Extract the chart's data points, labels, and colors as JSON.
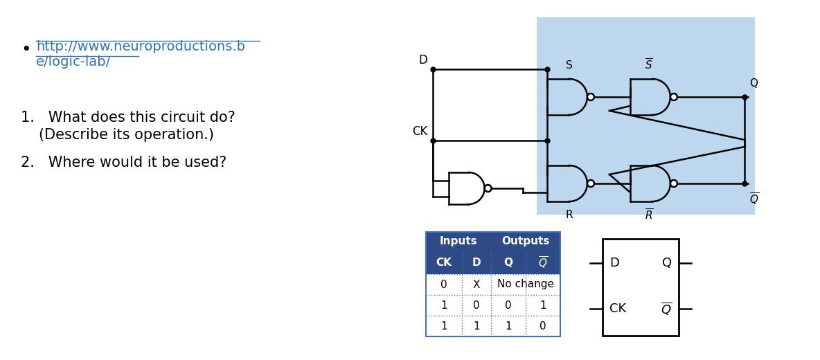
{
  "bg_color": "#ffffff",
  "link_color": "#2E74B5",
  "link_text1": "http://www.neuroproductions.b",
  "link_text2": "e/logic-lab/",
  "q1_line1": "What does this circuit do?",
  "q1_line2": "(Describe its operation.)",
  "q2_line1": "Where would it be used?",
  "circuit_bg": "#BDD7EE",
  "table_header_bg": "#2E4A87",
  "table_header_color": "#ffffff",
  "table_row_bg": "#ffffff",
  "table_border_color": "#4472C4",
  "table_rows": [
    [
      "0",
      "X",
      "No change",
      ""
    ],
    [
      "1",
      "0",
      "0",
      "1"
    ],
    [
      "1",
      "1",
      "1",
      "0"
    ]
  ],
  "gate_color": "#000000",
  "wire_color": "#000000"
}
